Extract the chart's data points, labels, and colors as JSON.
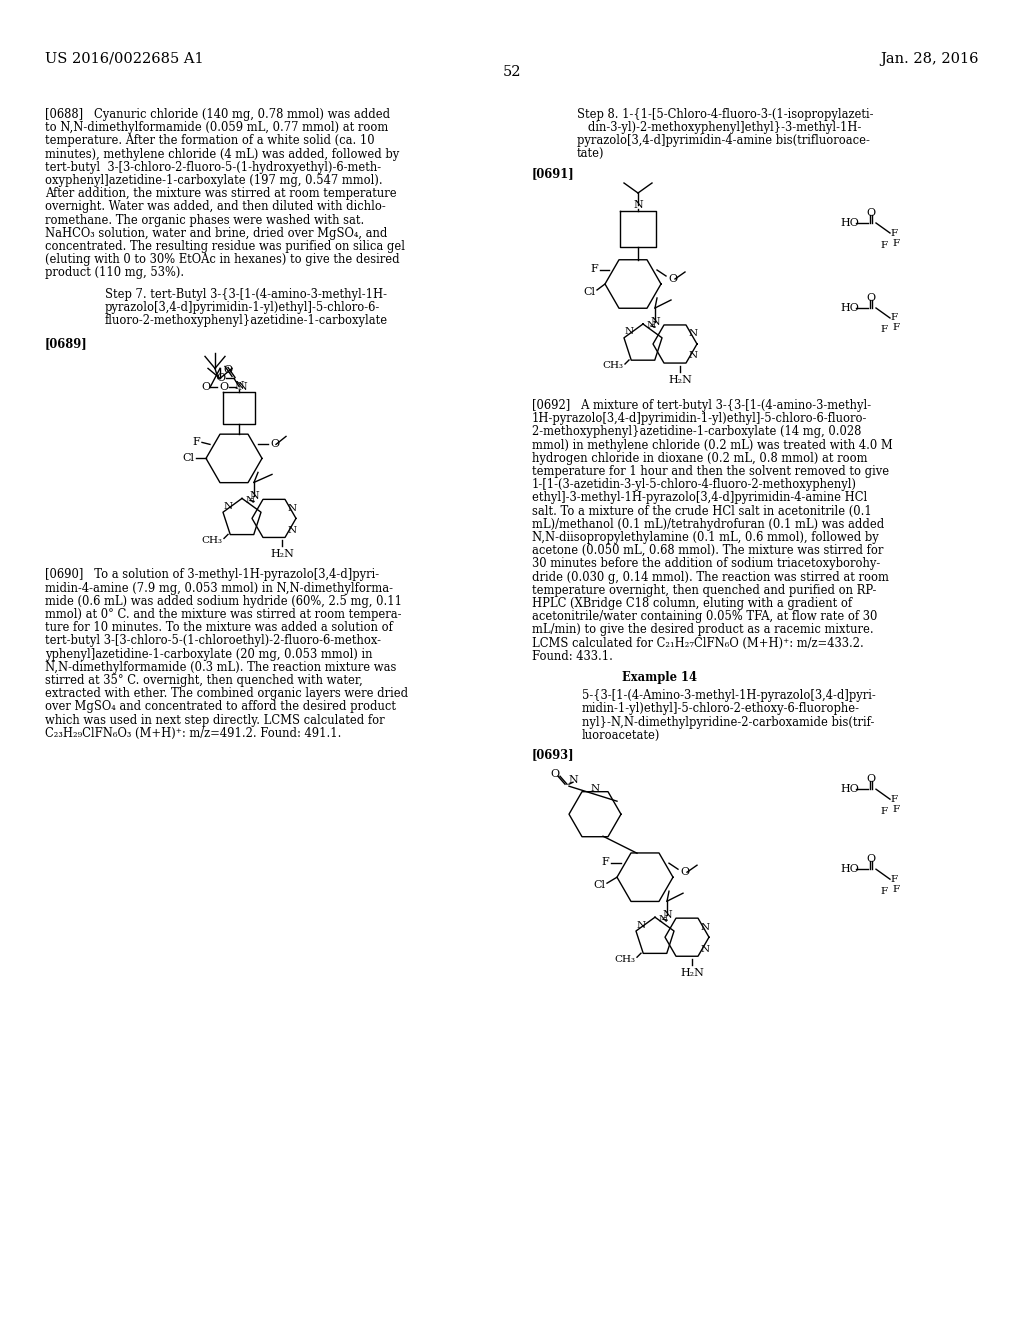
{
  "bg_color": "#ffffff",
  "header_left": "US 2016/0022685 A1",
  "header_right": "Jan. 28, 2016",
  "page_number": "52",
  "para0688_lines": [
    "[0688]   Cyanuric chloride (140 mg, 0.78 mmol) was added",
    "to N,N-dimethylformamide (0.059 mL, 0.77 mmol) at room",
    "temperature. After the formation of a white solid (ca. 10",
    "minutes), methylene chloride (4 mL) was added, followed by",
    "tert-butyl  3-[3-chloro-2-fluoro-5-(1-hydroxyethyl)-6-meth-",
    "oxyphenyl]azetidine-1-carboxylate (197 mg, 0.547 mmol).",
    "After addition, the mixture was stirred at room temperature",
    "overnight. Water was added, and then diluted with dichlo-",
    "romethane. The organic phases were washed with sat.",
    "NaHCO₃ solution, water and brine, dried over MgSO₄, and",
    "concentrated. The resulting residue was purified on silica gel",
    "(eluting with 0 to 30% EtOAc in hexanes) to give the desired",
    "product (110 mg, 53%)."
  ],
  "step7_lines": [
    "Step 7. tert-Butyl 3-{3-[1-(4-amino-3-methyl-1H-",
    "pyrazolo[3,4-d]pyrimidin-1-yl)ethyl]-5-chloro-6-",
    "fluoro-2-methoxyphenyl}azetidine-1-carboxylate"
  ],
  "para0690_lines": [
    "[0690]   To a solution of 3-methyl-1H-pyrazolo[3,4-d]pyri-",
    "midin-4-amine (7.9 mg, 0.053 mmol) in N,N-dimethylforma-",
    "mide (0.6 mL) was added sodium hydride (60%, 2.5 mg, 0.11",
    "mmol) at 0° C. and the mixture was stirred at room tempera-",
    "ture for 10 minutes. To the mixture was added a solution of",
    "tert-butyl 3-[3-chloro-5-(1-chloroethyl)-2-fluoro-6-methox-",
    "yphenyl]azetidine-1-carboxylate (20 mg, 0.053 mmol) in",
    "N,N-dimethylformamide (0.3 mL). The reaction mixture was",
    "stirred at 35° C. overnight, then quenched with water,",
    "extracted with ether. The combined organic layers were dried",
    "over MgSO₄ and concentrated to afford the desired product",
    "which was used in next step directly. LCMS calculated for",
    "C₂₃H₂₉ClFN₆O₃ (M+H)⁺: m/z=491.2. Found: 491.1."
  ],
  "step8_lines": [
    "Step 8. 1-{1-[5-Chloro-4-fluoro-3-(1-isopropylazeti-",
    "   din-3-yl)-2-methoxyphenyl]ethyl}-3-methyl-1H-",
    "pyrazolo[3,4-d]pyrimidin-4-amine bis(trifluoroace-",
    "tate)"
  ],
  "para0692_lines": [
    "[0692]   A mixture of tert-butyl 3-{3-[1-(4-amino-3-methyl-",
    "1H-pyrazolo[3,4-d]pyrimidin-1-yl)ethyl]-5-chloro-6-fluoro-",
    "2-methoxyphenyl}azetidine-1-carboxylate (14 mg, 0.028",
    "mmol) in methylene chloride (0.2 mL) was treated with 4.0 M",
    "hydrogen chloride in dioxane (0.2 mL, 0.8 mmol) at room",
    "temperature for 1 hour and then the solvent removed to give",
    "1-[1-(3-azetidin-3-yl-5-chloro-4-fluoro-2-methoxyphenyl)",
    "ethyl]-3-methyl-1H-pyrazolo[3,4-d]pyrimidin-4-amine HCl",
    "salt. To a mixture of the crude HCl salt in acetonitrile (0.1",
    "mL)/methanol (0.1 mL)/tetrahydrofuran (0.1 mL) was added",
    "N,N-diisopropylethylamine (0.1 mL, 0.6 mmol), followed by",
    "acetone (0.050 mL, 0.68 mmol). The mixture was stirred for",
    "30 minutes before the addition of sodium triacetoxyborohy-",
    "dride (0.030 g, 0.14 mmol). The reaction was stirred at room",
    "temperature overnight, then quenched and purified on RP-",
    "HPLC (XBridge C18 column, eluting with a gradient of",
    "acetonitrile/water containing 0.05% TFA, at flow rate of 30",
    "mL/min) to give the desired product as a racemic mixture.",
    "LCMS calculated for C₂₁H₂₇ClFN₆O (M+H)⁺: m/z=433.2.",
    "Found: 433.1."
  ],
  "example14_line": "Example 14",
  "example14_name_lines": [
    "5-{3-[1-(4-Amino-3-methyl-1H-pyrazolo[3,4-d]pyri-",
    "midin-1-yl)ethyl]-5-chloro-2-ethoxy-6-fluorophe-",
    "nyl}-N,N-dimethylpyridine-2-carboxamide bis(trif-",
    "luoroacetate)"
  ]
}
